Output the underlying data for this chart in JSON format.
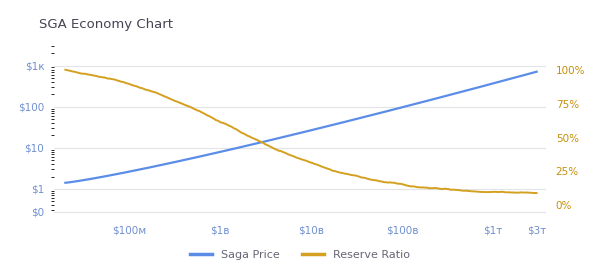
{
  "title": "SGA Economy Chart",
  "bg_color": "#ffffff",
  "plot_bg_color": "#ffffff",
  "grid_color": "#e2e4e8",
  "blue_color": "#5b8de8",
  "gold_color": "#d4a020",
  "text_color": "#555566",
  "tick_color_left": "#7090d0",
  "tick_color_right": "#c4900a",
  "x_ticks_labels": [
    "$100м",
    "$1в",
    "$10в",
    "$100в",
    "$1т",
    "$3т"
  ],
  "x_ticks_values": [
    100000000.0,
    1000000000.0,
    10000000000.0,
    100000000000.0,
    1000000000000.0,
    3000000000000.0
  ],
  "x_min": 15000000.0,
  "x_max": 3800000000000.0,
  "y_left_ticks_labels": [
    "$0",
    "$1",
    "$10",
    "$100",
    "$1к"
  ],
  "y_left_ticks_values": [
    0.28,
    1,
    10,
    100,
    1000
  ],
  "y_right_ticks_labels": [
    "0%",
    "25%",
    "50%",
    "75%",
    "100%"
  ],
  "y_right_ticks_values": [
    0,
    25,
    50,
    75,
    100
  ],
  "legend_labels": [
    "Saga Price",
    "Reserve Ratio"
  ],
  "price_start_log": 0.15,
  "price_end_log": 2.85,
  "icon_color": "#4060cc"
}
